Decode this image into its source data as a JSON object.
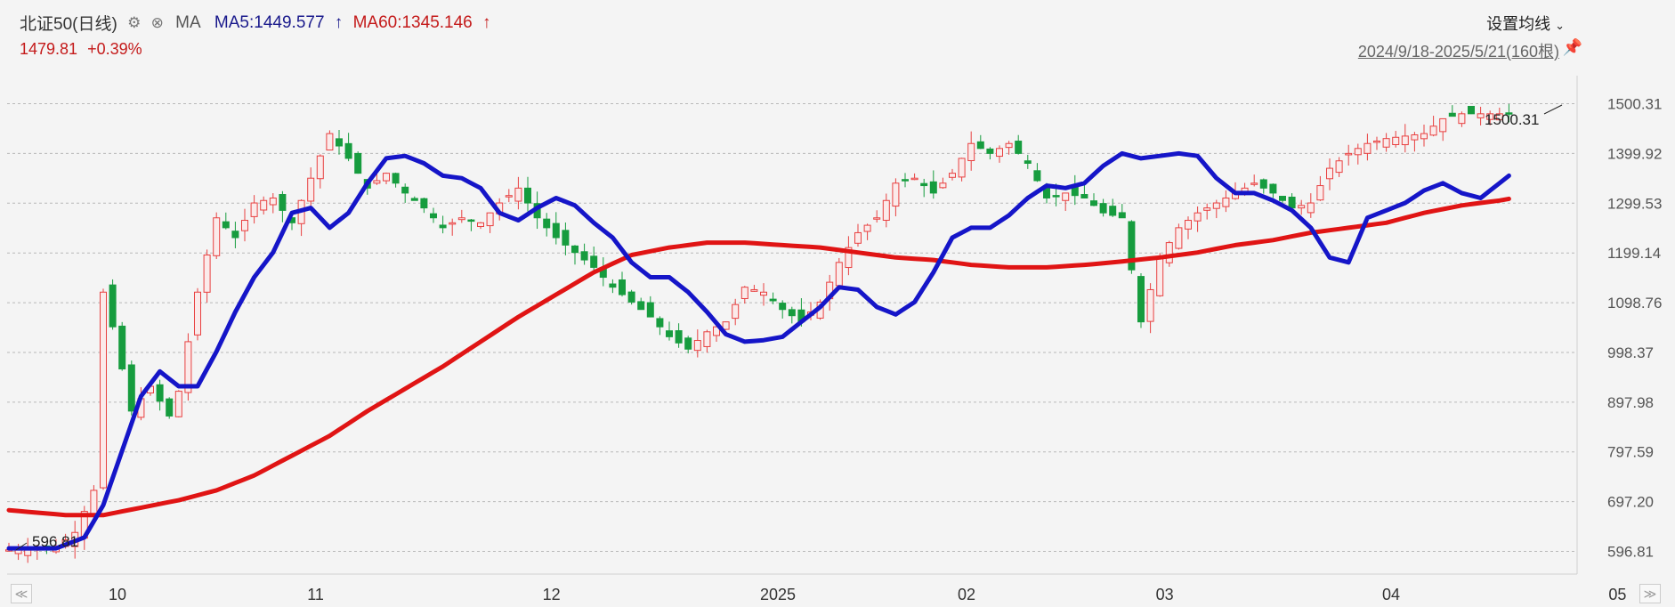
{
  "header": {
    "instrument": "北证50(日线)",
    "ma_label": "MA",
    "ma5_label": "MA5:1449.577",
    "ma5_arrow": "↑",
    "ma60_label": "MA60:1345.146",
    "ma60_arrow": "↑",
    "settings_icon": "gear-icon",
    "close_icon": "close-icon"
  },
  "quote": {
    "price": "1479.81",
    "change": "+0.39%"
  },
  "controls": {
    "settings_label": "设置均线",
    "range_label": "2024/9/18-2025/5/21(160根)",
    "pin_icon": "pin-icon",
    "nav_left": "≪",
    "nav_right": "≫"
  },
  "colors": {
    "up": "#e84040",
    "down": "#169c3e",
    "ma5": "#1515c8",
    "ma60": "#e01414",
    "grid": "#b8b8b8"
  },
  "chart_data": {
    "type": "candlestick",
    "title": "北证50(日线)",
    "ylim": [
      560,
      1530
    ],
    "y_ticks": [
      "1500.31",
      "1399.92",
      "1299.53",
      "1199.14",
      "1098.76",
      "998.37",
      "897.98",
      "797.59",
      "697.20",
      "596.81"
    ],
    "y_tick_values": [
      1500.31,
      1399.92,
      1299.53,
      1199.14,
      1098.76,
      998.37,
      897.98,
      797.59,
      697.2,
      596.81
    ],
    "x_ticks": [
      {
        "label": "10",
        "x": 10
      },
      {
        "label": "11",
        "x": 31
      },
      {
        "label": "12",
        "x": 56
      },
      {
        "label": "2025",
        "x": 80
      },
      {
        "label": "02",
        "x": 100
      },
      {
        "label": "03",
        "x": 121
      },
      {
        "label": "04",
        "x": 145
      },
      {
        "label": "05",
        "x": 169
      }
    ],
    "high_annotation": "1500.31",
    "low_annotation": "596.81",
    "n_bars": 160,
    "ma5_anchors": [
      [
        0,
        603
      ],
      [
        5,
        603
      ],
      [
        8,
        625
      ],
      [
        10,
        690
      ],
      [
        12,
        800
      ],
      [
        14,
        910
      ],
      [
        16,
        960
      ],
      [
        18,
        930
      ],
      [
        20,
        930
      ],
      [
        22,
        1000
      ],
      [
        24,
        1080
      ],
      [
        26,
        1150
      ],
      [
        28,
        1200
      ],
      [
        30,
        1280
      ],
      [
        32,
        1290
      ],
      [
        34,
        1250
      ],
      [
        36,
        1280
      ],
      [
        38,
        1340
      ],
      [
        40,
        1390
      ],
      [
        42,
        1395
      ],
      [
        44,
        1380
      ],
      [
        46,
        1355
      ],
      [
        48,
        1350
      ],
      [
        50,
        1330
      ],
      [
        52,
        1280
      ],
      [
        54,
        1265
      ],
      [
        56,
        1290
      ],
      [
        58,
        1310
      ],
      [
        60,
        1295
      ],
      [
        62,
        1260
      ],
      [
        64,
        1230
      ],
      [
        66,
        1180
      ],
      [
        68,
        1150
      ],
      [
        70,
        1150
      ],
      [
        72,
        1120
      ],
      [
        74,
        1080
      ],
      [
        76,
        1035
      ],
      [
        78,
        1020
      ],
      [
        80,
        1023
      ],
      [
        82,
        1030
      ],
      [
        84,
        1060
      ],
      [
        86,
        1090
      ],
      [
        88,
        1130
      ],
      [
        90,
        1125
      ],
      [
        92,
        1090
      ],
      [
        94,
        1075
      ],
      [
        96,
        1100
      ],
      [
        98,
        1160
      ],
      [
        100,
        1230
      ],
      [
        102,
        1250
      ],
      [
        104,
        1250
      ],
      [
        106,
        1275
      ],
      [
        108,
        1310
      ],
      [
        110,
        1335
      ],
      [
        112,
        1330
      ],
      [
        114,
        1340
      ],
      [
        116,
        1375
      ],
      [
        118,
        1400
      ],
      [
        120,
        1390
      ],
      [
        122,
        1395
      ],
      [
        124,
        1400
      ],
      [
        126,
        1395
      ],
      [
        128,
        1350
      ],
      [
        130,
        1320
      ],
      [
        132,
        1320
      ],
      [
        134,
        1305
      ],
      [
        136,
        1285
      ],
      [
        138,
        1250
      ],
      [
        140,
        1190
      ],
      [
        142,
        1180
      ],
      [
        144,
        1270
      ],
      [
        146,
        1285
      ],
      [
        148,
        1300
      ],
      [
        150,
        1325
      ],
      [
        152,
        1340
      ],
      [
        154,
        1320
      ],
      [
        156,
        1310
      ],
      [
        158,
        1340
      ],
      [
        160,
        1370
      ],
      [
        162,
        1395
      ],
      [
        164,
        1410
      ],
      [
        166,
        1420
      ],
      [
        168,
        1437
      ],
      [
        170,
        1460
      ]
    ],
    "ma60_anchors": [
      [
        0,
        680
      ],
      [
        6,
        670
      ],
      [
        10,
        670
      ],
      [
        14,
        685
      ],
      [
        18,
        700
      ],
      [
        22,
        720
      ],
      [
        26,
        750
      ],
      [
        30,
        790
      ],
      [
        34,
        830
      ],
      [
        38,
        880
      ],
      [
        42,
        925
      ],
      [
        46,
        970
      ],
      [
        50,
        1020
      ],
      [
        54,
        1070
      ],
      [
        58,
        1115
      ],
      [
        62,
        1160
      ],
      [
        66,
        1195
      ],
      [
        70,
        1210
      ],
      [
        74,
        1220
      ],
      [
        78,
        1220
      ],
      [
        82,
        1215
      ],
      [
        86,
        1210
      ],
      [
        90,
        1200
      ],
      [
        94,
        1190
      ],
      [
        98,
        1185
      ],
      [
        102,
        1175
      ],
      [
        106,
        1170
      ],
      [
        110,
        1170
      ],
      [
        114,
        1175
      ],
      [
        118,
        1182
      ],
      [
        122,
        1190
      ],
      [
        126,
        1200
      ],
      [
        130,
        1215
      ],
      [
        134,
        1225
      ],
      [
        138,
        1240
      ],
      [
        142,
        1250
      ],
      [
        146,
        1260
      ],
      [
        150,
        1280
      ],
      [
        154,
        1295
      ],
      [
        158,
        1305
      ],
      [
        162,
        1318
      ],
      [
        166,
        1325
      ],
      [
        170,
        1345
      ]
    ],
    "price_anchors": [
      [
        0,
        600
      ],
      [
        5,
        605
      ],
      [
        7,
        635
      ],
      [
        9,
        720
      ],
      [
        10,
        1120
      ],
      [
        11,
        1050
      ],
      [
        13,
        880
      ],
      [
        15,
        930
      ],
      [
        17,
        870
      ],
      [
        18,
        920
      ],
      [
        20,
        1120
      ],
      [
        22,
        1270
      ],
      [
        24,
        1230
      ],
      [
        26,
        1300
      ],
      [
        28,
        1310
      ],
      [
        30,
        1260
      ],
      [
        32,
        1350
      ],
      [
        34,
        1440
      ],
      [
        36,
        1390
      ],
      [
        38,
        1330
      ],
      [
        40,
        1360
      ],
      [
        42,
        1320
      ],
      [
        44,
        1290
      ],
      [
        46,
        1250
      ],
      [
        48,
        1270
      ],
      [
        50,
        1260
      ],
      [
        52,
        1300
      ],
      [
        54,
        1330
      ],
      [
        56,
        1270
      ],
      [
        58,
        1230
      ],
      [
        60,
        1200
      ],
      [
        62,
        1170
      ],
      [
        64,
        1130
      ],
      [
        66,
        1100
      ],
      [
        68,
        1070
      ],
      [
        70,
        1030
      ],
      [
        72,
        1005
      ],
      [
        74,
        1040
      ],
      [
        76,
        1060
      ],
      [
        78,
        1130
      ],
      [
        80,
        1120
      ],
      [
        82,
        1085
      ],
      [
        84,
        1060
      ],
      [
        86,
        1100
      ],
      [
        88,
        1180
      ],
      [
        90,
        1240
      ],
      [
        92,
        1270
      ],
      [
        94,
        1340
      ],
      [
        96,
        1350
      ],
      [
        98,
        1320
      ],
      [
        100,
        1360
      ],
      [
        102,
        1420
      ],
      [
        104,
        1400
      ],
      [
        106,
        1420
      ],
      [
        108,
        1380
      ],
      [
        110,
        1310
      ],
      [
        112,
        1320
      ],
      [
        114,
        1310
      ],
      [
        116,
        1280
      ],
      [
        118,
        1270
      ],
      [
        120,
        1060
      ],
      [
        122,
        1190
      ],
      [
        124,
        1250
      ],
      [
        126,
        1280
      ],
      [
        128,
        1300
      ],
      [
        130,
        1320
      ],
      [
        132,
        1340
      ],
      [
        134,
        1320
      ],
      [
        136,
        1290
      ],
      [
        138,
        1300
      ],
      [
        140,
        1370
      ],
      [
        142,
        1400
      ],
      [
        144,
        1420
      ],
      [
        146,
        1430
      ],
      [
        150,
        1440
      ],
      [
        152,
        1470
      ],
      [
        154,
        1480
      ],
      [
        159,
        1480
      ]
    ]
  }
}
